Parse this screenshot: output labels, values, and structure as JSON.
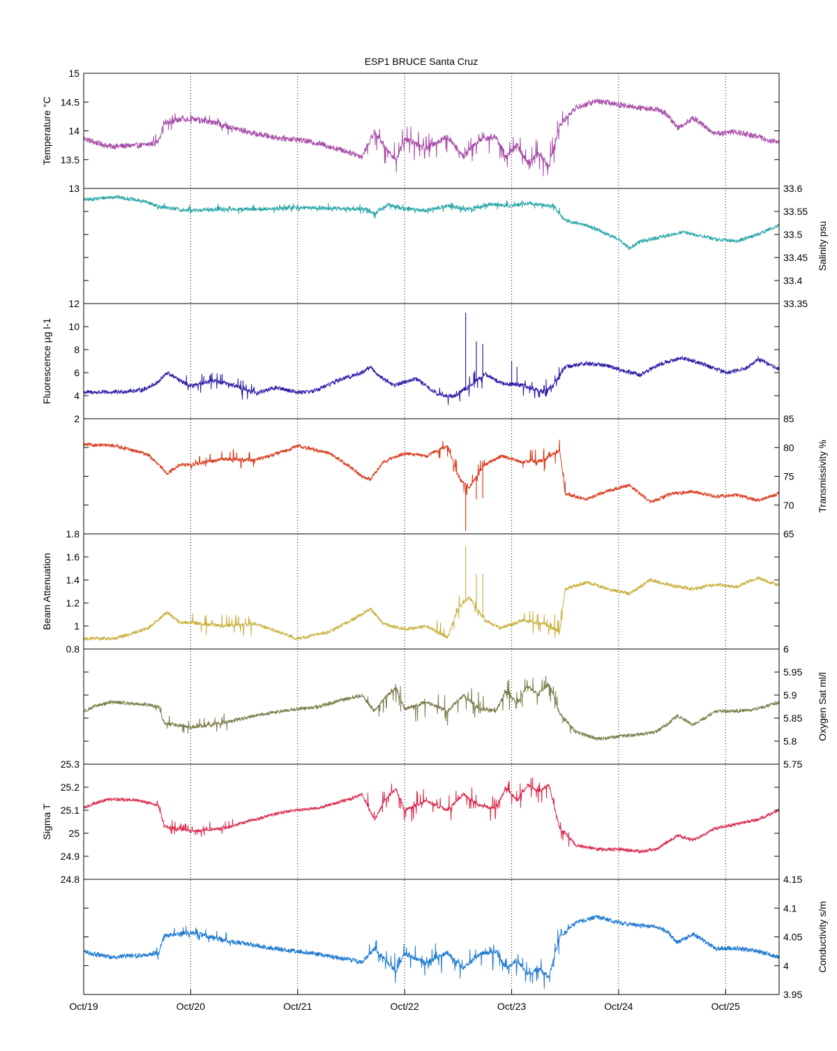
{
  "chart_data": {
    "type": "line",
    "title": "ESP1 BRUCE Santa Cruz",
    "x_ticks": [
      "Oct/19",
      "Oct/20",
      "Oct/21",
      "Oct/22",
      "Oct/23",
      "Oct/24",
      "Oct/25"
    ],
    "xlim_days": [
      0,
      6.5
    ],
    "grid": "vertical dotted lines at each day",
    "panels": [
      {
        "id": "temperature",
        "ylabel": "Temperature °C",
        "axis_side": "left",
        "color": "#a64ca6",
        "ylim": [
          13,
          15
        ],
        "yticks": [
          "13",
          "13.5",
          "14",
          "14.5",
          "15"
        ],
        "noise": 0.05,
        "spiky_periods": [
          [
            0.65,
            1.4,
            0.12
          ],
          [
            2.65,
            4.45,
            0.28
          ],
          [
            4.45,
            4.55,
            0.2
          ]
        ],
        "series": {
          "x": [
            0,
            0.1,
            0.25,
            0.55,
            0.7,
            0.75,
            1.0,
            1.3,
            1.6,
            1.85,
            2.0,
            2.2,
            2.5,
            2.6,
            2.72,
            2.82,
            2.92,
            3.0,
            3.2,
            3.4,
            3.55,
            3.7,
            3.85,
            3.95,
            4.05,
            4.15,
            4.25,
            4.35,
            4.45,
            4.6,
            4.8,
            5.0,
            5.2,
            5.35,
            5.45,
            5.55,
            5.7,
            5.9,
            6.1,
            6.3,
            6.5
          ],
          "y": [
            13.87,
            13.8,
            13.73,
            13.75,
            13.8,
            14.15,
            14.22,
            14.1,
            13.95,
            13.87,
            13.85,
            13.78,
            13.62,
            13.55,
            14.0,
            13.7,
            13.5,
            13.85,
            13.7,
            13.9,
            13.55,
            13.85,
            13.9,
            13.55,
            13.75,
            13.45,
            13.6,
            13.4,
            14.1,
            14.4,
            14.52,
            14.45,
            14.4,
            14.38,
            14.3,
            14.05,
            14.22,
            13.95,
            13.98,
            13.9,
            13.78
          ]
        }
      },
      {
        "id": "salinity",
        "ylabel": "Salinity psu",
        "axis_side": "right",
        "color": "#2aa6a6",
        "ylim": [
          33.35,
          33.6
        ],
        "yticks": [
          "33.35",
          "33.4",
          "33.45",
          "33.5",
          "33.55",
          "33.6"
        ],
        "noise": 0.004,
        "spiky_periods": [
          [
            0.65,
            4.5,
            0.01
          ]
        ],
        "series": {
          "x": [
            0,
            0.3,
            0.6,
            0.7,
            1.0,
            1.3,
            1.6,
            2.0,
            2.4,
            2.65,
            2.72,
            2.85,
            3.0,
            3.2,
            3.4,
            3.6,
            3.8,
            4.0,
            4.2,
            4.4,
            4.5,
            4.7,
            4.9,
            5.0,
            5.1,
            5.2,
            5.4,
            5.6,
            5.9,
            6.1,
            6.3,
            6.5
          ],
          "y": [
            33.575,
            33.582,
            33.57,
            33.56,
            33.552,
            33.555,
            33.555,
            33.558,
            33.556,
            33.555,
            33.545,
            33.565,
            33.555,
            33.552,
            33.562,
            33.555,
            33.565,
            33.562,
            33.568,
            33.56,
            33.53,
            33.52,
            33.5,
            33.49,
            33.47,
            33.485,
            33.495,
            33.505,
            33.49,
            33.485,
            33.5,
            33.52
          ]
        }
      },
      {
        "id": "fluorescence",
        "ylabel": "Fluorescence µg l-1",
        "axis_side": "left",
        "color": "#2a1ca6",
        "ylim": [
          2,
          12
        ],
        "yticks": [
          "2",
          "4",
          "6",
          "8",
          "10",
          "12"
        ],
        "noise": 0.18,
        "spiky_periods": [
          [
            0.95,
            1.6,
            0.9
          ],
          [
            3.3,
            3.75,
            1.0
          ],
          [
            4.1,
            4.5,
            0.8
          ]
        ],
        "spikes": [
          [
            3.57,
            11.2
          ],
          [
            3.67,
            8.7
          ],
          [
            3.73,
            8.5
          ],
          [
            4.0,
            7.0
          ],
          [
            4.05,
            6.5
          ]
        ],
        "series": {
          "x": [
            0,
            0.3,
            0.55,
            0.7,
            0.78,
            0.9,
            1.0,
            1.2,
            1.45,
            1.6,
            1.8,
            2.0,
            2.15,
            2.4,
            2.6,
            2.68,
            2.75,
            2.9,
            3.1,
            3.3,
            3.45,
            3.6,
            3.75,
            3.9,
            4.1,
            4.3,
            4.4,
            4.5,
            4.7,
            4.9,
            5.0,
            5.2,
            5.4,
            5.6,
            5.8,
            6.0,
            6.2,
            6.3,
            6.5
          ],
          "y": [
            4.3,
            4.3,
            4.5,
            5.2,
            6.0,
            5.3,
            4.8,
            5.3,
            4.8,
            4.2,
            4.7,
            4.3,
            4.4,
            5.4,
            6.0,
            6.5,
            5.8,
            4.9,
            5.5,
            4.2,
            3.9,
            4.8,
            5.9,
            5.1,
            4.9,
            4.3,
            5.0,
            6.5,
            6.8,
            6.6,
            6.3,
            5.8,
            6.8,
            7.3,
            6.7,
            6.0,
            6.4,
            7.2,
            6.3
          ]
        }
      },
      {
        "id": "transmissivity",
        "ylabel": "Transmissivity %",
        "axis_side": "right",
        "color": "#d83a1c",
        "ylim": [
          65,
          85
        ],
        "yticks": [
          "65",
          "70",
          "75",
          "80",
          "85"
        ],
        "noise": 0.3,
        "spiky_periods": [
          [
            1.0,
            1.6,
            1.8
          ],
          [
            3.3,
            3.75,
            2.0
          ],
          [
            4.1,
            4.5,
            2.0
          ]
        ],
        "spikes": [
          [
            3.57,
            65.5
          ],
          [
            3.67,
            71.0
          ],
          [
            3.73,
            71.2
          ]
        ],
        "series": {
          "x": [
            0,
            0.3,
            0.6,
            0.78,
            0.9,
            1.0,
            1.3,
            1.6,
            1.9,
            2.0,
            2.3,
            2.5,
            2.6,
            2.68,
            2.8,
            3.0,
            3.2,
            3.4,
            3.5,
            3.6,
            3.75,
            3.9,
            4.1,
            4.3,
            4.45,
            4.5,
            4.7,
            4.9,
            5.1,
            5.3,
            5.5,
            5.7,
            5.9,
            6.1,
            6.3,
            6.5
          ],
          "y": [
            80.5,
            80.3,
            78.8,
            75.5,
            77.0,
            77.0,
            78.0,
            77.8,
            79.5,
            80.3,
            79.0,
            76.5,
            75.0,
            74.5,
            77.5,
            79.0,
            78.5,
            80.3,
            75.0,
            73.0,
            77.0,
            78.5,
            77.5,
            77.8,
            79.5,
            72.0,
            71.0,
            72.5,
            73.5,
            70.5,
            72.0,
            72.3,
            71.5,
            71.8,
            70.8,
            72.0
          ]
        }
      },
      {
        "id": "beam_attenuation",
        "ylabel": "Beam Attenuation",
        "axis_side": "left",
        "color": "#c8b03a",
        "ylim": [
          0.8,
          1.8
        ],
        "yticks": [
          "0.8",
          "1",
          "1.2",
          "1.4",
          "1.6",
          "1.8"
        ],
        "noise": 0.015,
        "spiky_periods": [
          [
            1.0,
            1.6,
            0.1
          ],
          [
            3.3,
            3.75,
            0.12
          ],
          [
            4.1,
            4.5,
            0.12
          ]
        ],
        "spikes": [
          [
            3.57,
            1.69
          ],
          [
            3.67,
            1.45
          ],
          [
            3.73,
            1.45
          ]
        ],
        "series": {
          "x": [
            0,
            0.3,
            0.6,
            0.78,
            0.9,
            1.0,
            1.3,
            1.6,
            1.9,
            2.0,
            2.3,
            2.5,
            2.6,
            2.68,
            2.8,
            3.0,
            3.2,
            3.4,
            3.5,
            3.6,
            3.75,
            3.9,
            4.1,
            4.3,
            4.45,
            4.5,
            4.7,
            4.9,
            5.1,
            5.3,
            5.5,
            5.7,
            5.9,
            6.1,
            6.3,
            6.5
          ],
          "y": [
            0.89,
            0.89,
            0.98,
            1.12,
            1.03,
            1.03,
            1.0,
            1.02,
            0.92,
            0.89,
            0.95,
            1.05,
            1.1,
            1.15,
            1.02,
            0.97,
            1.0,
            0.9,
            1.15,
            1.25,
            1.05,
            0.98,
            1.05,
            1.02,
            0.95,
            1.32,
            1.38,
            1.32,
            1.28,
            1.4,
            1.35,
            1.32,
            1.36,
            1.34,
            1.42,
            1.35
          ]
        }
      },
      {
        "id": "oxygen_sat",
        "ylabel": "Oxygen Sat ml/l",
        "axis_side": "right",
        "color": "#7a7a4a",
        "ylim": [
          5.75,
          6.0
        ],
        "yticks": [
          "5.75",
          "5.8",
          "5.85",
          "5.9",
          "5.95",
          "6"
        ],
        "noise": 0.004,
        "spiky_periods": [
          [
            0.65,
            1.4,
            0.018
          ],
          [
            2.65,
            4.45,
            0.035
          ],
          [
            4.45,
            4.55,
            0.02
          ]
        ],
        "series": {
          "x": [
            0,
            0.1,
            0.25,
            0.55,
            0.7,
            0.75,
            1.0,
            1.3,
            1.6,
            1.85,
            2.0,
            2.2,
            2.5,
            2.6,
            2.72,
            2.82,
            2.92,
            3.0,
            3.2,
            3.4,
            3.55,
            3.7,
            3.85,
            3.95,
            4.05,
            4.15,
            4.25,
            4.35,
            4.45,
            4.6,
            4.8,
            5.0,
            5.2,
            5.35,
            5.45,
            5.55,
            5.7,
            5.9,
            6.1,
            6.3,
            6.5
          ],
          "y": [
            5.865,
            5.875,
            5.885,
            5.88,
            5.875,
            5.84,
            5.83,
            5.84,
            5.855,
            5.865,
            5.87,
            5.875,
            5.895,
            5.9,
            5.865,
            5.895,
            5.915,
            5.87,
            5.885,
            5.865,
            5.9,
            5.87,
            5.865,
            5.91,
            5.88,
            5.92,
            5.9,
            5.925,
            5.86,
            5.82,
            5.805,
            5.81,
            5.815,
            5.82,
            5.835,
            5.855,
            5.835,
            5.865,
            5.865,
            5.87,
            5.885
          ]
        }
      },
      {
        "id": "sigma_t",
        "ylabel": "Sigma T",
        "axis_side": "left",
        "color": "#d8284a",
        "ylim": [
          24.8,
          25.3
        ],
        "yticks": [
          "24.8",
          "24.9",
          "25",
          "25.1",
          "25.2",
          "25.3"
        ],
        "noise": 0.007,
        "spiky_periods": [
          [
            0.65,
            1.4,
            0.03
          ],
          [
            2.65,
            4.45,
            0.06
          ],
          [
            4.45,
            4.55,
            0.04
          ]
        ],
        "series": {
          "x": [
            0,
            0.1,
            0.25,
            0.55,
            0.7,
            0.75,
            1.0,
            1.3,
            1.6,
            1.85,
            2.0,
            2.2,
            2.5,
            2.6,
            2.72,
            2.82,
            2.92,
            3.0,
            3.2,
            3.4,
            3.55,
            3.7,
            3.85,
            3.95,
            4.05,
            4.15,
            4.25,
            4.35,
            4.45,
            4.6,
            4.8,
            5.0,
            5.2,
            5.35,
            5.45,
            5.55,
            5.7,
            5.9,
            6.1,
            6.3,
            6.5
          ],
          "y": [
            25.11,
            25.13,
            25.15,
            25.14,
            25.12,
            25.03,
            25.01,
            25.02,
            25.06,
            25.09,
            25.1,
            25.11,
            25.15,
            25.17,
            25.06,
            25.15,
            25.19,
            25.1,
            25.14,
            25.1,
            25.17,
            25.12,
            25.11,
            25.2,
            25.14,
            25.21,
            25.18,
            25.21,
            25.02,
            24.95,
            24.93,
            24.93,
            24.92,
            24.93,
            24.96,
            24.99,
            24.97,
            25.02,
            25.04,
            25.06,
            25.1
          ]
        }
      },
      {
        "id": "conductivity",
        "ylabel": "Conductivity s/m",
        "axis_side": "right",
        "color": "#1c78d0",
        "ylim": [
          3.95,
          4.15
        ],
        "yticks": [
          "3.95",
          "4",
          "4.05",
          "4.1",
          "4.15"
        ],
        "noise": 0.004,
        "spiky_periods": [
          [
            0.65,
            1.4,
            0.012
          ],
          [
            2.65,
            4.45,
            0.03
          ],
          [
            4.45,
            4.55,
            0.015
          ]
        ],
        "series": {
          "x": [
            0,
            0.1,
            0.25,
            0.55,
            0.7,
            0.75,
            1.0,
            1.3,
            1.6,
            1.85,
            2.0,
            2.2,
            2.5,
            2.6,
            2.72,
            2.82,
            2.92,
            3.0,
            3.2,
            3.4,
            3.55,
            3.7,
            3.85,
            3.95,
            4.05,
            4.15,
            4.25,
            4.35,
            4.45,
            4.6,
            4.8,
            5.0,
            5.2,
            5.35,
            5.45,
            5.55,
            5.7,
            5.9,
            6.1,
            6.3,
            6.5
          ],
          "y": [
            4.025,
            4.02,
            4.015,
            4.018,
            4.022,
            4.052,
            4.058,
            4.045,
            4.035,
            4.028,
            4.025,
            4.02,
            4.01,
            4.005,
            4.03,
            4.01,
            3.99,
            4.02,
            4.005,
            4.022,
            3.995,
            4.02,
            4.025,
            3.995,
            4.01,
            3.985,
            3.995,
            3.98,
            4.05,
            4.075,
            4.085,
            4.075,
            4.07,
            4.068,
            4.06,
            4.04,
            4.055,
            4.03,
            4.03,
            4.025,
            4.015
          ]
        }
      }
    ]
  }
}
